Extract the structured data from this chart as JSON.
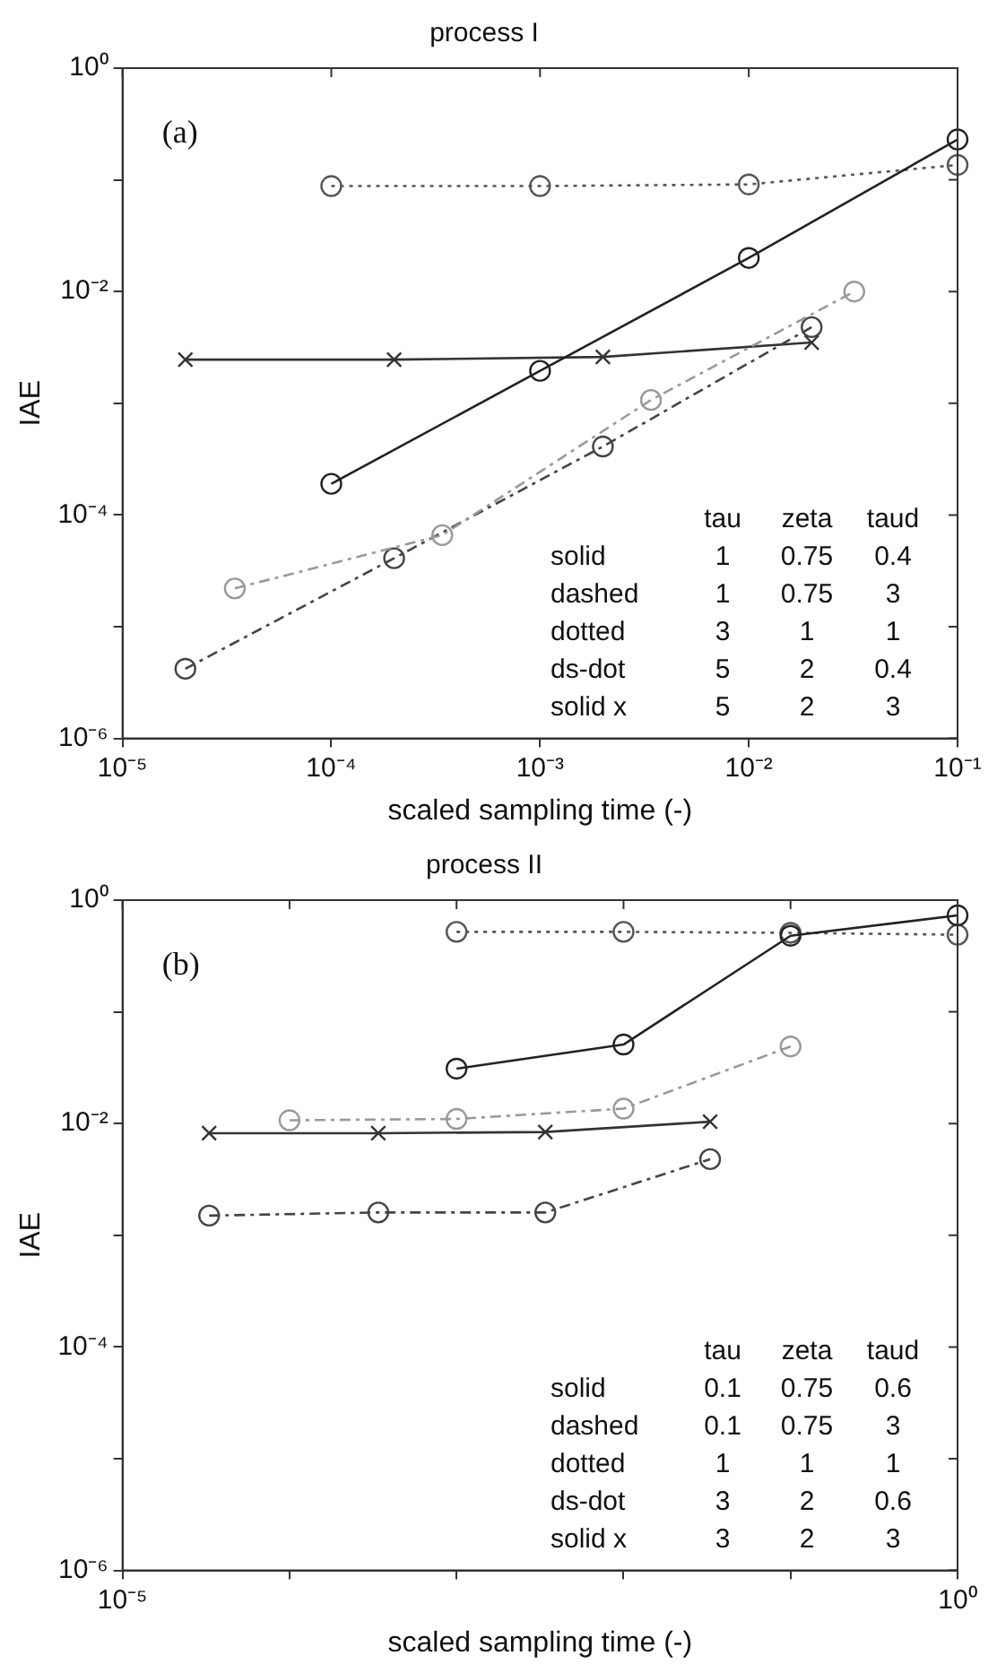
{
  "chart_data": [
    {
      "type": "line",
      "title": "process I",
      "xlabel": "scaled sampling time (-)",
      "ylabel": "IAE",
      "log": "xy",
      "grid": false,
      "xlim": [
        1e-05,
        0.1
      ],
      "xticks": [
        {
          "value": 1e-05,
          "label": "10⁻⁵"
        },
        {
          "value": 0.0001,
          "label": "10⁻⁴"
        },
        {
          "value": 0.001,
          "label": "10⁻³"
        },
        {
          "value": 0.01,
          "label": "10⁻²"
        },
        {
          "value": 0.1,
          "label": "10⁻¹"
        }
      ],
      "ylim": [
        1e-06,
        1
      ],
      "yticks": [
        {
          "value": 1e-06,
          "label": "10⁻⁶"
        },
        {
          "value": 1e-05,
          "label": null
        },
        {
          "value": 0.0001,
          "label": "10⁻⁴"
        },
        {
          "value": 0.001,
          "label": null
        },
        {
          "value": 0.01,
          "label": "10⁻²"
        },
        {
          "value": 0.1,
          "label": null
        },
        {
          "value": 1,
          "label": "10⁰"
        }
      ],
      "annotations": [
        "(a)",
        "\ttau\tzeta\ttaud",
        "solid\t1\t0.75\t0.4",
        "dashed\t1\t0.75\t3",
        "dotted\t3\t1\t1",
        "ds-dot\t5\t2\t0.4",
        "solid x\t5\t2\t3"
      ],
      "series": [
        {
          "color": "#222222",
          "marker": "circle",
          "line_style": "solid",
          "x": [
            0.0001,
            0.001,
            0.01,
            0.1
          ],
          "values": [
            0.00019,
            0.00195,
            0.02,
            0.23
          ]
        },
        {
          "color": "#999999",
          "marker": "circle",
          "line_style": "dashed",
          "x": [
            3.45e-05,
            0.00034,
            0.0034,
            0.032
          ],
          "values": [
            2.2e-05,
            6.6e-05,
            0.00107,
            0.01
          ]
        },
        {
          "color": "#555555",
          "marker": "circle",
          "line_style": "dotted",
          "x": [
            0.0001,
            0.001,
            0.01,
            0.1
          ],
          "values": [
            0.088,
            0.088,
            0.091,
            0.136
          ]
        },
        {
          "color": "#444444",
          "marker": "circle",
          "line_style": "dashed",
          "x": [
            2e-05,
            0.0002,
            0.002,
            0.02
          ],
          "values": [
            4.2e-06,
            4.1e-05,
            0.00041,
            0.0048
          ]
        },
        {
          "color": "#333333",
          "marker": "cross",
          "line_style": "solid",
          "x": [
            2e-05,
            0.0002,
            0.002,
            0.02
          ],
          "values": [
            0.00246,
            0.00246,
            0.0026,
            0.0035
          ]
        }
      ]
    },
    {
      "type": "line",
      "title": "process II",
      "xlabel": "scaled sampling time (-)",
      "ylabel": "IAE",
      "log": "xy",
      "grid": false,
      "xlim": [
        1e-05,
        1
      ],
      "xticks": [
        {
          "value": 1e-05,
          "label": "10⁻⁵"
        },
        {
          "value": 0.0001,
          "label": null
        },
        {
          "value": 0.001,
          "label": null
        },
        {
          "value": 0.01,
          "label": null
        },
        {
          "value": 0.1,
          "label": null
        },
        {
          "value": 1,
          "label": "10⁰"
        }
      ],
      "ylim": [
        1e-06,
        1
      ],
      "yticks": [
        {
          "value": 1e-06,
          "label": "10⁻⁶"
        },
        {
          "value": 1e-05,
          "label": null
        },
        {
          "value": 0.0001,
          "label": "10⁻⁴"
        },
        {
          "value": 0.001,
          "label": null
        },
        {
          "value": 0.01,
          "label": "10⁻²"
        },
        {
          "value": 0.1,
          "label": null
        },
        {
          "value": 1,
          "label": "10⁰"
        }
      ],
      "annotations": [
        "(b)",
        "\ttau\tzeta\ttaud",
        "solid\t0.1\t0.75\t0.6",
        "dashed\t0.1\t0.75\t3",
        "dotted\t1\t1\t1",
        "ds-dot\t3\t2\t0.6",
        "solid x\t3\t2\t3"
      ],
      "series": [
        {
          "color": "#222222",
          "marker": "circle",
          "line_style": "solid",
          "x": [
            0.001,
            0.01,
            0.1,
            1
          ],
          "values": [
            0.031,
            0.051,
            0.48,
            0.73
          ]
        },
        {
          "color": "#999999",
          "marker": "circle",
          "line_style": "dashed",
          "x": [
            0.0001,
            0.001,
            0.01,
            0.1
          ],
          "values": [
            0.0107,
            0.011,
            0.0136,
            0.049
          ]
        },
        {
          "color": "#555555",
          "marker": "circle",
          "line_style": "dotted",
          "x": [
            0.001,
            0.01,
            0.1,
            1
          ],
          "values": [
            0.52,
            0.52,
            0.51,
            0.49
          ]
        },
        {
          "color": "#444444",
          "marker": "circle",
          "line_style": "dashed",
          "x": [
            3.3e-05,
            0.00034,
            0.0034,
            0.033
          ],
          "values": [
            0.0015,
            0.0016,
            0.0016,
            0.0048
          ]
        },
        {
          "color": "#333333",
          "marker": "cross",
          "line_style": "solid",
          "x": [
            3.3e-05,
            0.00034,
            0.0034,
            0.033
          ],
          "values": [
            0.0082,
            0.0082,
            0.0084,
            0.0104
          ]
        }
      ]
    }
  ]
}
